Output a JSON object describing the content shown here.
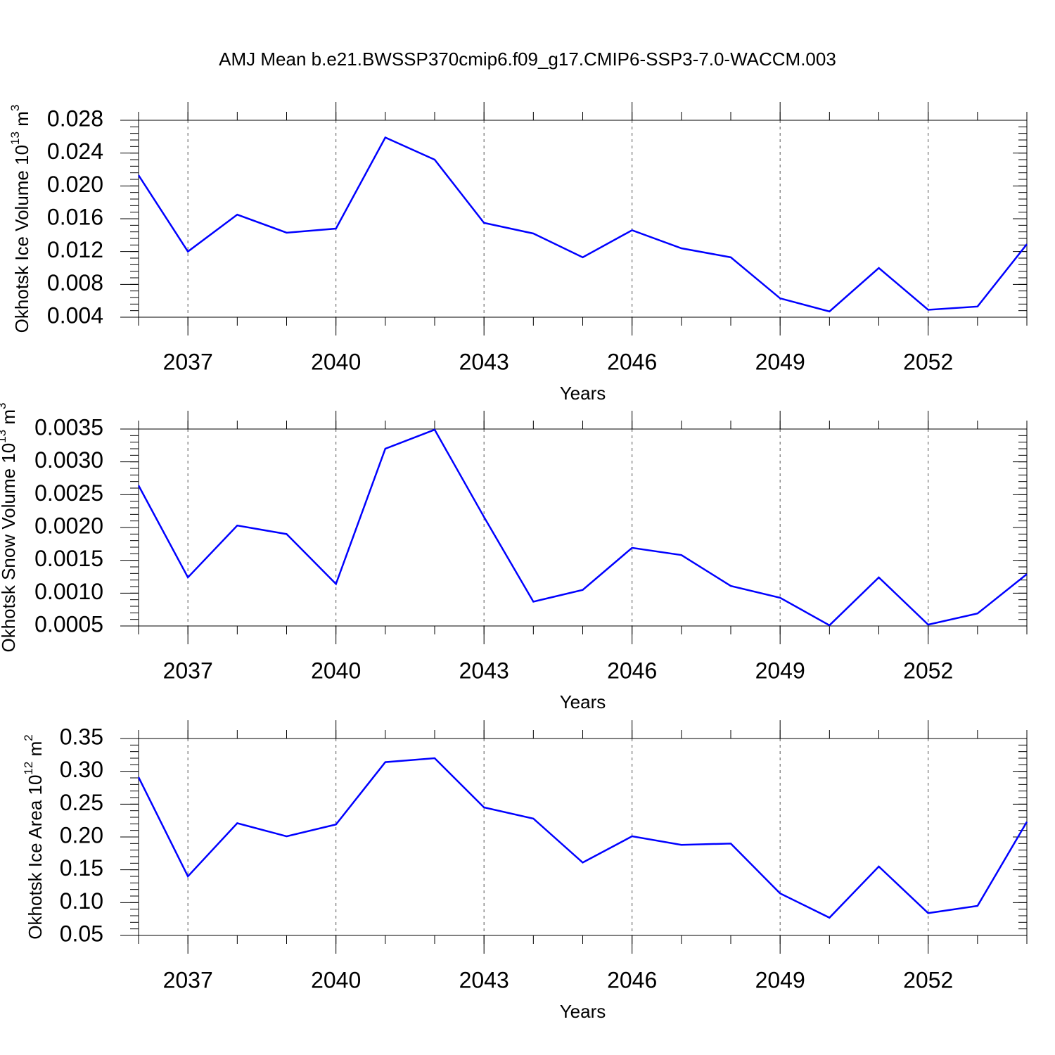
{
  "title": "AMJ Mean b.e21.BWSSP370cmip6.f09_g17.CMIP6-SSP3-7.0-WACCM.003",
  "chart_data": [
    {
      "type": "line",
      "xlabel": "Years",
      "ylabel": {
        "text": "Okhotsk Ice Volume 10",
        "exponent": "13",
        "unit": " m",
        "unit_exponent": "3"
      },
      "x": [
        2036,
        2037,
        2038,
        2039,
        2040,
        2041,
        2042,
        2043,
        2044,
        2045,
        2046,
        2047,
        2048,
        2049,
        2050,
        2051,
        2052,
        2053,
        2054
      ],
      "xlim": [
        2036,
        2054
      ],
      "xticks": [
        2037,
        2040,
        2043,
        2046,
        2049,
        2052
      ],
      "ylim": [
        0.004,
        0.028
      ],
      "yticks": [
        0.004,
        0.008,
        0.012,
        0.016,
        {
          "value": 0.02,
          "label": "0.020"
        },
        0.024,
        0.028
      ],
      "grid": true,
      "series": [
        {
          "color": "#0000ff",
          "values": [
            0.0213,
            0.012,
            0.0165,
            0.0143,
            0.0148,
            0.0259,
            0.0232,
            0.0155,
            0.0142,
            0.0113,
            0.0146,
            0.0124,
            0.0113,
            0.0063,
            0.0047,
            0.01,
            0.0049,
            0.0053,
            0.0129
          ]
        }
      ]
    },
    {
      "type": "line",
      "xlabel": "Years",
      "ylabel": {
        "text": "Okhotsk Snow Volume 10",
        "exponent": "13",
        "unit": " m",
        "unit_exponent": "3"
      },
      "x": [
        2036,
        2037,
        2038,
        2039,
        2040,
        2041,
        2042,
        2043,
        2044,
        2045,
        2046,
        2047,
        2048,
        2049,
        2050,
        2051,
        2052,
        2053,
        2054
      ],
      "xlim": [
        2036,
        2054
      ],
      "xticks": [
        2037,
        2040,
        2043,
        2046,
        2049,
        2052
      ],
      "ylim": [
        0.0005,
        0.0035
      ],
      "yticks": [
        0.0005,
        {
          "value": 0.001,
          "label": "0.0010"
        },
        0.0015,
        {
          "value": 0.002,
          "label": "0.0020"
        },
        0.0025,
        {
          "value": 0.003,
          "label": "0.0030"
        },
        0.0035
      ],
      "grid": true,
      "series": [
        {
          "color": "#0000ff",
          "values": [
            0.00264,
            0.00124,
            0.00203,
            0.0019,
            0.00114,
            0.0032,
            0.00349,
            0.00216,
            0.00087,
            0.00105,
            0.00169,
            0.00158,
            0.00111,
            0.00093,
            0.00051,
            0.00124,
            0.00052,
            0.00069,
            0.00129
          ]
        }
      ]
    },
    {
      "type": "line",
      "xlabel": "Years",
      "ylabel": {
        "text": "Okhotsk Ice Area 10",
        "exponent": "12",
        "unit": " m",
        "unit_exponent": "2"
      },
      "x": [
        2036,
        2037,
        2038,
        2039,
        2040,
        2041,
        2042,
        2043,
        2044,
        2045,
        2046,
        2047,
        2048,
        2049,
        2050,
        2051,
        2052,
        2053,
        2054
      ],
      "xlim": [
        2036,
        2054
      ],
      "xticks": [
        2037,
        2040,
        2043,
        2046,
        2049,
        2052
      ],
      "ylim": [
        0.05,
        0.35
      ],
      "yticks": [
        0.05,
        {
          "value": 0.1,
          "label": "0.10"
        },
        0.15,
        {
          "value": 0.2,
          "label": "0.20"
        },
        0.25,
        {
          "value": 0.3,
          "label": "0.30"
        },
        0.35
      ],
      "grid": true,
      "series": [
        {
          "color": "#0000ff",
          "values": [
            0.291,
            0.14,
            0.221,
            0.201,
            0.219,
            0.314,
            0.32,
            0.245,
            0.228,
            0.161,
            0.201,
            0.188,
            0.19,
            0.114,
            0.077,
            0.155,
            0.084,
            0.095,
            0.223
          ]
        }
      ]
    }
  ]
}
